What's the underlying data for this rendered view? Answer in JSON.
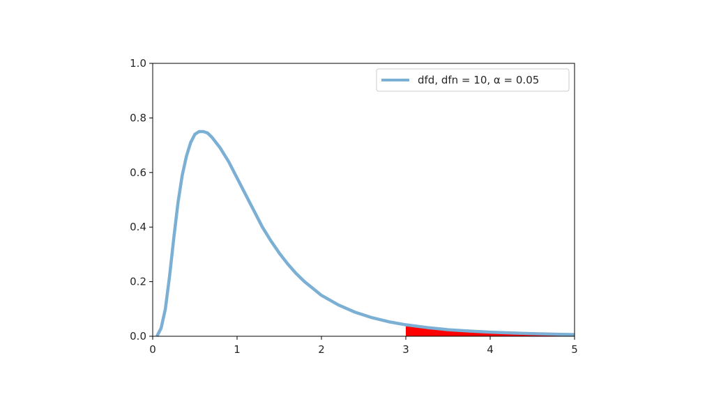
{
  "chart_data": {
    "type": "line",
    "title": "",
    "xlabel": "",
    "ylabel": "",
    "xlim": [
      0,
      5
    ],
    "ylim": [
      0,
      1.0
    ],
    "x_ticks": [
      "0",
      "1",
      "2",
      "3",
      "4",
      "5"
    ],
    "y_ticks": [
      "0.0",
      "0.2",
      "0.4",
      "0.6",
      "0.8",
      "1.0"
    ],
    "grid": false,
    "legend_position": "top-right",
    "series": [
      {
        "name": "dfd, dfn = 10, α = 0.05",
        "color": "#7bafd4",
        "x": [
          0.05,
          0.1,
          0.15,
          0.2,
          0.25,
          0.3,
          0.35,
          0.4,
          0.45,
          0.5,
          0.55,
          0.6,
          0.65,
          0.7,
          0.75,
          0.8,
          0.9,
          1.0,
          1.1,
          1.2,
          1.3,
          1.4,
          1.5,
          1.6,
          1.7,
          1.8,
          1.9,
          2.0,
          2.2,
          2.4,
          2.6,
          2.8,
          3.0,
          3.25,
          3.5,
          3.75,
          4.0,
          4.25,
          4.5,
          4.75,
          5.0
        ],
        "y": [
          0.0,
          0.03,
          0.1,
          0.22,
          0.36,
          0.49,
          0.59,
          0.66,
          0.71,
          0.74,
          0.75,
          0.75,
          0.745,
          0.73,
          0.71,
          0.69,
          0.64,
          0.58,
          0.52,
          0.46,
          0.4,
          0.35,
          0.305,
          0.265,
          0.23,
          0.2,
          0.175,
          0.15,
          0.115,
          0.088,
          0.068,
          0.053,
          0.042,
          0.032,
          0.024,
          0.019,
          0.015,
          0.012,
          0.0095,
          0.0075,
          0.006
        ]
      }
    ],
    "shaded_region": {
      "x_from": 3,
      "x_to": 5,
      "color": "#ff0000"
    }
  }
}
